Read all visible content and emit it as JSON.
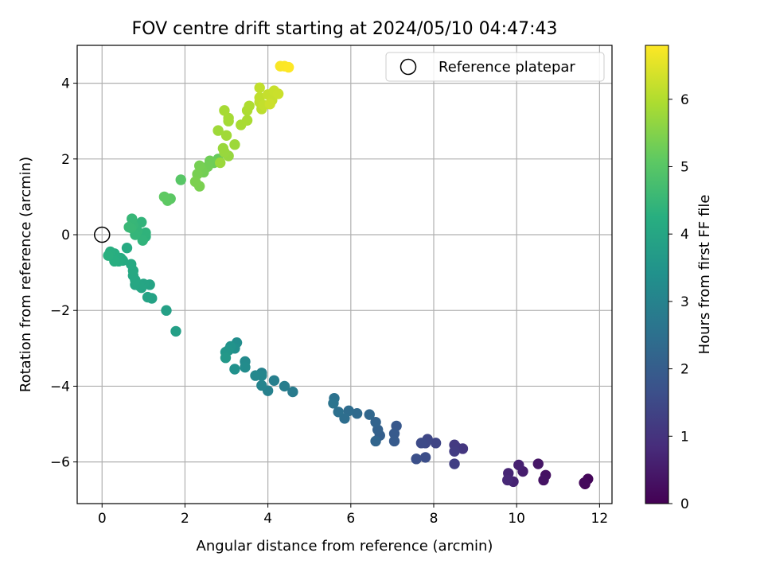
{
  "chart_data": {
    "type": "scatter",
    "title": "FOV centre drift starting at 2024/05/10 04:47:43",
    "xlabel": "Angular distance from reference (arcmin)",
    "ylabel": "Rotation from reference (arcmin)",
    "xlim": [
      -0.6,
      12.3
    ],
    "ylim": [
      -7.1,
      5.0
    ],
    "xticks": [
      0,
      2,
      4,
      6,
      8,
      10,
      12
    ],
    "yticks": [
      -6,
      -4,
      -2,
      0,
      2,
      4
    ],
    "xtick_labels": [
      "0",
      "2",
      "4",
      "6",
      "8",
      "10",
      "12"
    ],
    "ytick_labels": [
      "−6",
      "−4",
      "−2",
      "0",
      "2",
      "4"
    ],
    "grid": true,
    "legend": {
      "position": "top-right",
      "entries": [
        "Reference platepar"
      ]
    },
    "reference_point": {
      "x": 0,
      "y": 0,
      "marker": "open circle"
    },
    "colorbar": {
      "label": "Hours from first FF file",
      "colormap": "viridis",
      "range": [
        0,
        6.8
      ],
      "ticks": [
        0,
        1,
        2,
        3,
        4,
        5,
        6
      ],
      "tick_labels": [
        "0",
        "1",
        "2",
        "3",
        "4",
        "5",
        "6"
      ]
    },
    "series": [
      {
        "color_value": "hours",
        "points": [
          [
            11.65,
            -6.58,
            0.05
          ],
          [
            11.72,
            -6.45,
            0.1
          ],
          [
            11.63,
            -6.55,
            0.15
          ],
          [
            10.7,
            -6.35,
            0.3
          ],
          [
            10.65,
            -6.48,
            0.35
          ],
          [
            10.52,
            -6.05,
            0.4
          ],
          [
            10.15,
            -6.25,
            0.55
          ],
          [
            10.05,
            -6.08,
            0.6
          ],
          [
            9.92,
            -6.52,
            0.65
          ],
          [
            9.8,
            -6.3,
            0.7
          ],
          [
            9.78,
            -6.48,
            0.75
          ],
          [
            8.7,
            -5.65,
            1.05
          ],
          [
            8.55,
            -5.62,
            1.1
          ],
          [
            8.5,
            -5.55,
            1.15
          ],
          [
            8.5,
            -5.72,
            1.2
          ],
          [
            8.5,
            -6.05,
            1.25
          ],
          [
            8.05,
            -5.5,
            1.4
          ],
          [
            7.85,
            -5.4,
            1.45
          ],
          [
            7.8,
            -5.5,
            1.5
          ],
          [
            7.7,
            -5.5,
            1.55
          ],
          [
            7.8,
            -5.88,
            1.6
          ],
          [
            7.58,
            -5.92,
            1.65
          ],
          [
            7.1,
            -5.05,
            1.85
          ],
          [
            7.05,
            -5.25,
            1.9
          ],
          [
            7.05,
            -5.45,
            1.95
          ],
          [
            6.7,
            -5.3,
            2.05
          ],
          [
            6.65,
            -5.15,
            2.1
          ],
          [
            6.6,
            -4.95,
            2.15
          ],
          [
            6.6,
            -5.45,
            2.2
          ],
          [
            6.45,
            -4.75,
            2.25
          ],
          [
            6.15,
            -4.72,
            2.35
          ],
          [
            5.95,
            -4.65,
            2.4
          ],
          [
            5.85,
            -4.85,
            2.45
          ],
          [
            5.7,
            -4.68,
            2.5
          ],
          [
            5.6,
            -4.32,
            2.55
          ],
          [
            5.58,
            -4.45,
            2.6
          ],
          [
            4.6,
            -4.15,
            2.8
          ],
          [
            4.4,
            -4.0,
            2.85
          ],
          [
            4.15,
            -3.85,
            2.9
          ],
          [
            4.0,
            -4.12,
            2.95
          ],
          [
            3.85,
            -3.65,
            3.0
          ],
          [
            3.85,
            -3.98,
            3.05
          ],
          [
            3.85,
            -3.72,
            3.1
          ],
          [
            3.7,
            -3.72,
            3.15
          ],
          [
            3.45,
            -3.35,
            3.2
          ],
          [
            3.45,
            -3.5,
            3.25
          ],
          [
            3.25,
            -2.85,
            3.3
          ],
          [
            3.2,
            -3.0,
            3.35
          ],
          [
            3.2,
            -3.55,
            3.4
          ],
          [
            3.1,
            -2.95,
            3.45
          ],
          [
            3.05,
            -3.05,
            3.5
          ],
          [
            2.98,
            -3.1,
            3.55
          ],
          [
            2.98,
            -3.25,
            3.6
          ],
          [
            1.78,
            -2.55,
            3.8
          ],
          [
            1.55,
            -2.0,
            3.85
          ],
          [
            1.2,
            -1.68,
            3.9
          ],
          [
            1.1,
            -1.65,
            3.92
          ],
          [
            1.15,
            -1.32,
            3.94
          ],
          [
            1.0,
            -1.3,
            3.96
          ],
          [
            0.95,
            -1.4,
            3.98
          ],
          [
            0.9,
            -1.35,
            4.0
          ],
          [
            0.8,
            -1.32,
            4.02
          ],
          [
            0.8,
            -1.2,
            4.04
          ],
          [
            0.75,
            -1.08,
            4.06
          ],
          [
            0.75,
            -0.95,
            4.08
          ],
          [
            0.7,
            -0.78,
            4.1
          ],
          [
            0.6,
            -0.35,
            4.12
          ],
          [
            0.5,
            -0.68,
            4.14
          ],
          [
            0.45,
            -0.62,
            4.16
          ],
          [
            0.4,
            -0.7,
            4.18
          ],
          [
            0.35,
            -0.6,
            4.2
          ],
          [
            0.3,
            -0.5,
            4.22
          ],
          [
            0.3,
            -0.7,
            4.24
          ],
          [
            0.2,
            -0.45,
            4.26
          ],
          [
            0.15,
            -0.55,
            4.28
          ],
          [
            1.05,
            -0.05,
            4.35
          ],
          [
            1.05,
            0.05,
            4.38
          ],
          [
            0.98,
            -0.15,
            4.4
          ],
          [
            0.95,
            0.33,
            4.42
          ],
          [
            0.85,
            0.1,
            4.44
          ],
          [
            0.8,
            0.0,
            4.46
          ],
          [
            0.75,
            0.25,
            4.48
          ],
          [
            0.72,
            0.42,
            4.5
          ],
          [
            0.7,
            0.18,
            4.52
          ],
          [
            0.65,
            0.2,
            4.54
          ],
          [
            1.9,
            1.45,
            5.0
          ],
          [
            1.65,
            0.95,
            5.05
          ],
          [
            1.58,
            0.9,
            5.08
          ],
          [
            1.5,
            1.0,
            5.1
          ],
          [
            2.8,
            2.0,
            5.2
          ],
          [
            2.7,
            1.9,
            5.25
          ],
          [
            2.6,
            1.95,
            5.28
          ],
          [
            2.55,
            1.8,
            5.3
          ],
          [
            2.45,
            1.65,
            5.32
          ],
          [
            2.4,
            1.72,
            5.34
          ],
          [
            2.35,
            1.82,
            5.36
          ],
          [
            2.3,
            1.6,
            5.38
          ],
          [
            2.35,
            1.28,
            5.4
          ],
          [
            2.25,
            1.4,
            5.42
          ],
          [
            3.05,
            2.08,
            5.7
          ],
          [
            2.95,
            2.18,
            5.72
          ],
          [
            2.92,
            2.28,
            5.74
          ],
          [
            2.85,
            1.9,
            5.76
          ],
          [
            3.2,
            2.38,
            5.78
          ],
          [
            2.8,
            2.75,
            5.8
          ],
          [
            3.0,
            2.62,
            5.82
          ],
          [
            3.05,
            3.0,
            5.84
          ],
          [
            3.05,
            3.08,
            5.86
          ],
          [
            2.95,
            3.28,
            5.88
          ],
          [
            3.35,
            2.9,
            5.9
          ],
          [
            3.5,
            3.02,
            5.92
          ],
          [
            3.5,
            3.28,
            5.94
          ],
          [
            3.55,
            3.4,
            5.96
          ],
          [
            3.85,
            3.32,
            6.1
          ],
          [
            3.8,
            3.5,
            6.12
          ],
          [
            3.8,
            3.62,
            6.14
          ],
          [
            3.8,
            3.88,
            6.16
          ],
          [
            3.9,
            3.42,
            6.18
          ],
          [
            4.0,
            3.7,
            6.2
          ],
          [
            4.1,
            3.55,
            6.22
          ],
          [
            4.15,
            3.8,
            6.24
          ],
          [
            4.25,
            3.72,
            6.26
          ],
          [
            4.05,
            3.45,
            6.28
          ],
          [
            4.3,
            4.45,
            6.75
          ],
          [
            4.4,
            4.45,
            6.78
          ],
          [
            4.5,
            4.42,
            6.8
          ]
        ]
      }
    ]
  }
}
